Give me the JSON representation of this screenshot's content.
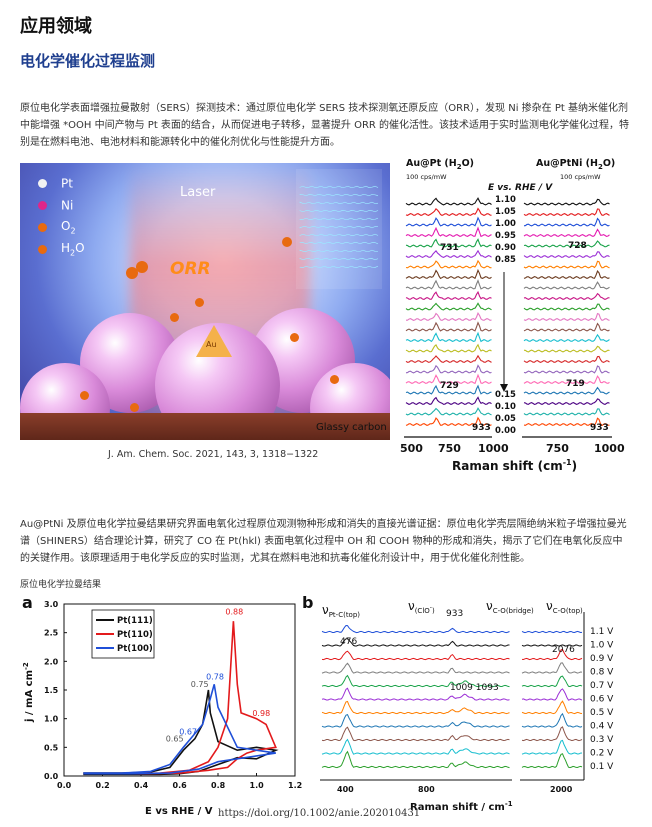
{
  "header": {
    "title": "应用领域"
  },
  "section": {
    "title": "电化学催化过程监测"
  },
  "para1": "原位电化学表面增强拉曼散射（SERS）探测技术：通过原位电化学 SERS 技术探测氧还原反应（ORR），发现 Ni 掺杂在 Pt 基纳米催化剂中能增强 *OOH 中间产物与 Pt 表面的结合，从而促进电子转移，显著提升 ORR 的催化活性。该技术适用于实时监测电化学催化过程，特别是在燃料电池、电池材料和能源转化中的催化剂优化与性能提升方面。",
  "fig1": {
    "legend": [
      {
        "label": "Pt",
        "color": "#f2f2f2"
      },
      {
        "label": "Ni",
        "color": "#e0268a"
      },
      {
        "label": "O",
        "sub": "2",
        "color": "#e86a10"
      },
      {
        "label": "H",
        "sub": "2",
        "tail": "O",
        "color": "#e86a10"
      }
    ],
    "laser": "Laser",
    "orr": "ORR",
    "au": "Au",
    "glassy": "Glassy carbon",
    "caption": "J. Am. Chem. Soc. 2021, 143, 3, 1318−1322",
    "left_title": "Au@Pt (H",
    "left_title_tail": "O)",
    "right_title": "Au@PtNi (H",
    "right_title_tail": "O)",
    "scale_left": "100 cps/mW",
    "scale_right": "100 cps/mW",
    "evs": "E vs. RHE / V",
    "potentials": [
      "1.10",
      "1.05",
      "1.00",
      "0.95",
      "0.90",
      "0.85",
      "0.15",
      "0.10",
      "0.05",
      "0.00"
    ],
    "peak_l1": "731",
    "peak_r1": "728",
    "peak_l2": "729",
    "peak_r2": "719",
    "peak_l3": "933",
    "peak_r3": "933",
    "xticks": [
      "500",
      "750",
      "1000",
      "750",
      "1000"
    ],
    "xlabel": "Raman shift (cm",
    "xlabel_tail": ")",
    "colors": [
      "#111111",
      "#e31a1c",
      "#1f4fd8",
      "#e41ab0",
      "#1aa34a",
      "#9b2fd6",
      "#ff7f00",
      "#6b3b1f",
      "#7f7f7f",
      "#c71585",
      "#2ca02c",
      "#e377c2",
      "#8c564b",
      "#17becf",
      "#bcbd22",
      "#d62728",
      "#9467bd",
      "#ff69b4",
      "#1f77b4",
      "#4b0082",
      "#20b2aa",
      "#ff4500",
      "#3cb371",
      "#6a5acd",
      "#00bfff"
    ]
  },
  "para2": "Au@PtNi 及原位电化学拉曼结果研究界面电氧化过程原位观测物种形成和消失的直接光谱证据：原位电化学壳层隔绝纳米粒子增强拉曼光谱（SHINERS）结合理论计算，研究了 CO 在 Pt(hkl) 表面电氧化过程中 OH 和 COOH 物种的形成和消失，揭示了它们在电氧化反应中的关键作用。该原理适用于电化学反应的实时监测，尤其在燃料电池和抗毒化催化剂设计中，用于优化催化剂性能。",
  "fig2_label": "原位电化学拉曼结果",
  "chart_data": [
    {
      "type": "line",
      "panel": "a",
      "xlabel": "E vs RHE / V",
      "ylabel": "j / mA cm",
      "xticks": [
        "0.0",
        "0.2",
        "0.4",
        "0.6",
        "0.8",
        "1.0",
        "1.2"
      ],
      "yticks": [
        "0.0",
        "0.5",
        "1.0",
        "1.5",
        "2.0",
        "2.5",
        "3.0"
      ],
      "xlim": [
        0,
        1.2
      ],
      "ylim": [
        0,
        3
      ],
      "legend": "top-left",
      "series": [
        {
          "name": "Pt(111)",
          "color": "#111111",
          "x": [
            0.1,
            0.3,
            0.45,
            0.55,
            0.62,
            0.68,
            0.72,
            0.74,
            0.75,
            0.76,
            0.8,
            0.9,
            1.0,
            1.1,
            1.0,
            0.9,
            0.8,
            0.7,
            0.6,
            0.5,
            0.35,
            0.1
          ],
          "y": [
            0.05,
            0.05,
            0.07,
            0.15,
            0.45,
            0.65,
            0.9,
            1.3,
            1.5,
            1.1,
            0.6,
            0.45,
            0.5,
            0.45,
            0.3,
            0.32,
            0.2,
            0.08,
            0.04,
            0.03,
            0.03,
            0.03
          ]
        },
        {
          "name": "Pt(110)",
          "color": "#e31a1c",
          "x": [
            0.1,
            0.3,
            0.5,
            0.65,
            0.75,
            0.8,
            0.85,
            0.88,
            0.9,
            0.92,
            1.0,
            1.05,
            1.1,
            1.0,
            0.95,
            0.9,
            0.85,
            0.75,
            0.6,
            0.4,
            0.1
          ],
          "y": [
            0.04,
            0.04,
            0.05,
            0.1,
            0.25,
            0.5,
            1.0,
            2.7,
            1.6,
            1.1,
            1.0,
            0.9,
            0.5,
            0.45,
            0.4,
            0.3,
            0.15,
            0.1,
            0.05,
            0.04,
            0.04
          ]
        },
        {
          "name": "Pt(100)",
          "color": "#1f4fd8",
          "x": [
            0.1,
            0.3,
            0.45,
            0.55,
            0.62,
            0.67,
            0.72,
            0.76,
            0.78,
            0.8,
            0.9,
            1.0,
            1.1,
            1.0,
            0.9,
            0.8,
            0.7,
            0.55,
            0.35,
            0.1
          ],
          "y": [
            0.05,
            0.05,
            0.08,
            0.2,
            0.5,
            0.7,
            0.9,
            1.35,
            1.6,
            1.2,
            0.5,
            0.45,
            0.4,
            0.35,
            0.3,
            0.25,
            0.12,
            0.05,
            0.04,
            0.04
          ]
        }
      ],
      "annotations": [
        {
          "text": "0.88",
          "x": 0.88,
          "y": 2.82,
          "color": "#e31a1c"
        },
        {
          "text": "0.98",
          "x": 1.02,
          "y": 1.05,
          "color": "#e31a1c"
        },
        {
          "text": "0.78",
          "x": 0.78,
          "y": 1.68,
          "color": "#1f4fd8"
        },
        {
          "text": "0.75",
          "x": 0.7,
          "y": 1.55,
          "color": "#555"
        },
        {
          "text": "0.67",
          "x": 0.64,
          "y": 0.72,
          "color": "#1f4fd8"
        },
        {
          "text": "0.65",
          "x": 0.57,
          "y": 0.6,
          "color": "#555"
        }
      ]
    },
    {
      "type": "line",
      "panel": "b",
      "xlabel": "Raman shift / cm",
      "xticks": [
        "400",
        "800",
        "2000"
      ],
      "potentials": [
        "1.1 V",
        "1.0 V",
        "0.9 V",
        "0.8 V",
        "0.7 V",
        "0.6 V",
        "0.5 V",
        "0.4 V",
        "0.3 V",
        "0.2 V",
        "0.1 V"
      ],
      "peaks": [
        "476",
        "933",
        "1009 1093",
        "2076"
      ],
      "band_labels": [
        "ν",
        "Pt-C(top)",
        "ν",
        "(ClO",
        "-",
        ")",
        "ν",
        "C-O(bridge)",
        "ν",
        "C-O(top)"
      ]
    }
  ],
  "doi": "https://doi.org/10.1002/anie.202010431"
}
